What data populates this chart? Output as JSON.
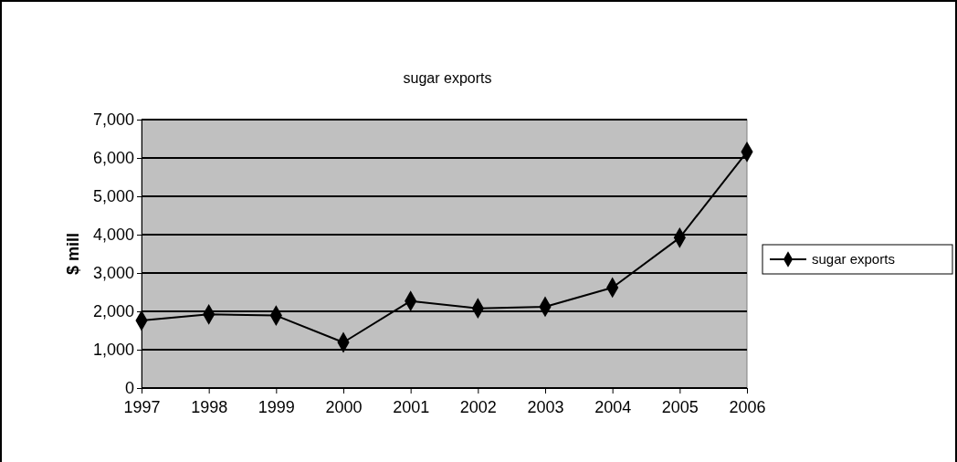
{
  "chart_data": {
    "type": "line",
    "title": "sugar exports",
    "ylabel": "$ mill",
    "categories": [
      "1997",
      "1998",
      "1999",
      "2000",
      "2001",
      "2002",
      "2003",
      "2004",
      "2005",
      "2006"
    ],
    "series": [
      {
        "name": "sugar exports",
        "color": "#000000",
        "values": [
          1760,
          1920,
          1890,
          1190,
          2270,
          2080,
          2120,
          2620,
          3920,
          6160
        ]
      }
    ],
    "ylim": [
      0,
      7000
    ],
    "yticks": [
      {
        "value": 0,
        "label": "0"
      },
      {
        "value": 1000,
        "label": "1,000"
      },
      {
        "value": 2000,
        "label": "2,000"
      },
      {
        "value": 3000,
        "label": "3,000"
      },
      {
        "value": 4000,
        "label": "4,000"
      },
      {
        "value": 5000,
        "label": "5,000"
      },
      {
        "value": 6000,
        "label": "6,000"
      },
      {
        "value": 7000,
        "label": "7,000"
      }
    ],
    "grid": "y",
    "legend": "right",
    "marker": "diamond",
    "line_style": "solid"
  }
}
